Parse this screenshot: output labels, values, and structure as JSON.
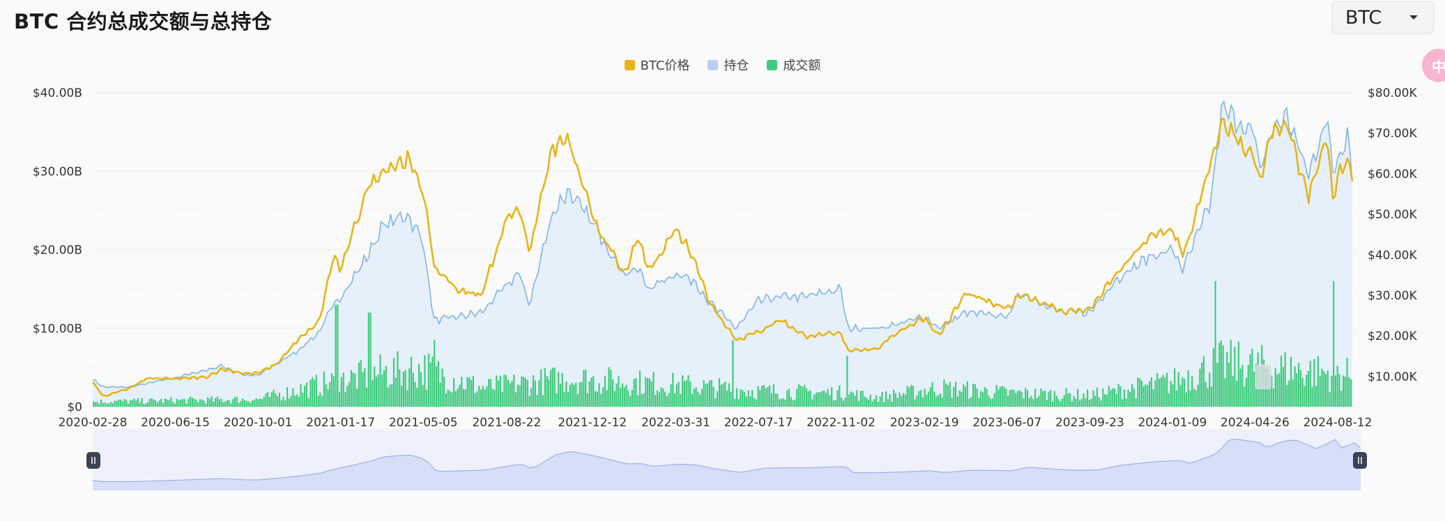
{
  "page": {
    "title": "BTC 合约总成交额与总持仓",
    "selector": {
      "value": "BTC"
    },
    "side_tab_glyph": "中"
  },
  "colors": {
    "price": "#e8b416",
    "open_interest_line": "#7fb4e6",
    "open_interest_fill": "#e6f0fa",
    "volume": "#3ecb7b",
    "grid": "#eeeeee",
    "navigator_fill": "#d7def7",
    "navigator_line": "#9fb1e6",
    "handle": "#3b4256"
  },
  "chart_data": {
    "type": "mixed",
    "legend_position": "top-center",
    "legend": [
      {
        "label": "BTC价格",
        "color": "#e8b416"
      },
      {
        "label": "持仓",
        "color": "#b9d0f0"
      },
      {
        "label": "成交额",
        "color": "#3ecb7b"
      }
    ],
    "x_tick_labels": [
      "2020-02-28",
      "2020-06-15",
      "2020-10-01",
      "2021-01-17",
      "2021-05-05",
      "2021-08-22",
      "2021-12-12",
      "2022-03-31",
      "2022-07-17",
      "2022-11-02",
      "2023-02-19",
      "2023-06-07",
      "2023-09-23",
      "2024-01-09",
      "2024-04-26",
      "2024-08-12"
    ],
    "y_left": {
      "ticks": [
        "$0",
        "$10.00B",
        "$20.00B",
        "$30.00B",
        "$40.00B"
      ],
      "min": 0,
      "max": 40,
      "unit": "B USD"
    },
    "y_right": {
      "ticks": [
        "$10.00K",
        "$20.00K",
        "$30.00K",
        "$40.00K",
        "$50.00K",
        "$60.00K",
        "$70.00K",
        "$80.00K"
      ],
      "min": 2.5,
      "max": 80,
      "unit": "K USD"
    },
    "grid": true,
    "series": [
      {
        "name": "BTC价格",
        "type": "line",
        "axis": "right",
        "points": [
          [
            "2020-02-28",
            8.7
          ],
          [
            "2020-03-13",
            5.0
          ],
          [
            "2020-04-15",
            7.0
          ],
          [
            "2020-05-10",
            9.5
          ],
          [
            "2020-06-15",
            9.4
          ],
          [
            "2020-07-25",
            9.8
          ],
          [
            "2020-08-15",
            11.8
          ],
          [
            "2020-09-15",
            10.7
          ],
          [
            "2020-10-01",
            10.8
          ],
          [
            "2020-10-25",
            13.0
          ],
          [
            "2020-11-20",
            18.5
          ],
          [
            "2020-12-20",
            23.5
          ],
          [
            "2021-01-08",
            40.0
          ],
          [
            "2021-01-17",
            36.0
          ],
          [
            "2021-02-20",
            56.0
          ],
          [
            "2021-03-13",
            61.0
          ],
          [
            "2021-04-14",
            63.5
          ],
          [
            "2021-05-05",
            56.0
          ],
          [
            "2021-05-19",
            37.0
          ],
          [
            "2021-06-22",
            31.0
          ],
          [
            "2021-07-20",
            30.0
          ],
          [
            "2021-08-22",
            49.0
          ],
          [
            "2021-09-07",
            51.5
          ],
          [
            "2021-09-21",
            41.0
          ],
          [
            "2021-10-20",
            66.0
          ],
          [
            "2021-11-10",
            68.5
          ],
          [
            "2021-12-12",
            49.5
          ],
          [
            "2022-01-22",
            35.0
          ],
          [
            "2022-02-10",
            44.0
          ],
          [
            "2022-02-24",
            36.0
          ],
          [
            "2022-03-31",
            46.5
          ],
          [
            "2022-04-25",
            39.0
          ],
          [
            "2022-05-12",
            29.0
          ],
          [
            "2022-06-18",
            19.0
          ],
          [
            "2022-07-17",
            21.0
          ],
          [
            "2022-08-15",
            24.0
          ],
          [
            "2022-09-15",
            20.0
          ],
          [
            "2022-11-02",
            20.5
          ],
          [
            "2022-11-10",
            16.5
          ],
          [
            "2022-12-20",
            16.8
          ],
          [
            "2023-01-15",
            21.0
          ],
          [
            "2023-02-19",
            24.5
          ],
          [
            "2023-03-10",
            20.0
          ],
          [
            "2023-04-14",
            30.5
          ],
          [
            "2023-06-07",
            26.5
          ],
          [
            "2023-06-25",
            30.5
          ],
          [
            "2023-08-18",
            26.0
          ],
          [
            "2023-09-23",
            26.5
          ],
          [
            "2023-10-25",
            34.5
          ],
          [
            "2023-12-08",
            44.0
          ],
          [
            "2024-01-09",
            46.5
          ],
          [
            "2024-01-23",
            39.5
          ],
          [
            "2024-02-28",
            62.0
          ],
          [
            "2024-03-14",
            73.0
          ],
          [
            "2024-04-26",
            63.5
          ],
          [
            "2024-05-01",
            57.0
          ],
          [
            "2024-05-20",
            71.0
          ],
          [
            "2024-06-07",
            71.5
          ],
          [
            "2024-07-05",
            54.0
          ],
          [
            "2024-07-29",
            69.5
          ],
          [
            "2024-08-05",
            53.5
          ],
          [
            "2024-08-12",
            59.0
          ],
          [
            "2024-08-25",
            64.0
          ],
          [
            "2024-08-31",
            58.5
          ]
        ]
      },
      {
        "name": "持仓",
        "type": "area",
        "axis": "left",
        "points": [
          [
            "2020-02-28",
            3.5
          ],
          [
            "2020-03-13",
            2.5
          ],
          [
            "2020-04-15",
            2.5
          ],
          [
            "2020-06-15",
            3.7
          ],
          [
            "2020-08-15",
            5.2
          ],
          [
            "2020-09-15",
            4.0
          ],
          [
            "2020-10-01",
            4.0
          ],
          [
            "2020-11-20",
            7.0
          ],
          [
            "2020-12-20",
            9.5
          ],
          [
            "2021-01-08",
            13.0
          ],
          [
            "2021-01-17",
            14.0
          ],
          [
            "2021-02-20",
            19.0
          ],
          [
            "2021-03-13",
            23.0
          ],
          [
            "2021-04-14",
            24.5
          ],
          [
            "2021-05-05",
            21.0
          ],
          [
            "2021-05-19",
            11.0
          ],
          [
            "2021-06-22",
            11.5
          ],
          [
            "2021-07-20",
            12.0
          ],
          [
            "2021-08-22",
            15.5
          ],
          [
            "2021-09-07",
            17.0
          ],
          [
            "2021-09-21",
            13.0
          ],
          [
            "2021-10-20",
            24.5
          ],
          [
            "2021-11-10",
            27.5
          ],
          [
            "2021-12-12",
            23.5
          ],
          [
            "2022-01-22",
            17.0
          ],
          [
            "2022-02-10",
            17.5
          ],
          [
            "2022-02-24",
            15.0
          ],
          [
            "2022-03-31",
            17.0
          ],
          [
            "2022-04-25",
            16.0
          ],
          [
            "2022-05-12",
            13.5
          ],
          [
            "2022-06-18",
            10.0
          ],
          [
            "2022-07-17",
            13.5
          ],
          [
            "2022-08-15",
            14.0
          ],
          [
            "2022-09-15",
            14.0
          ],
          [
            "2022-11-02",
            15.0
          ],
          [
            "2022-11-10",
            10.0
          ],
          [
            "2022-12-20",
            10.0
          ],
          [
            "2023-01-15",
            10.5
          ],
          [
            "2023-02-19",
            11.5
          ],
          [
            "2023-03-10",
            10.0
          ],
          [
            "2023-04-14",
            12.0
          ],
          [
            "2023-06-07",
            11.5
          ],
          [
            "2023-06-25",
            14.5
          ],
          [
            "2023-08-18",
            12.0
          ],
          [
            "2023-09-23",
            12.0
          ],
          [
            "2023-10-25",
            16.0
          ],
          [
            "2023-12-08",
            19.0
          ],
          [
            "2024-01-09",
            20.0
          ],
          [
            "2024-01-23",
            17.5
          ],
          [
            "2024-02-28",
            26.0
          ],
          [
            "2024-03-14",
            38.0
          ],
          [
            "2024-04-26",
            34.5
          ],
          [
            "2024-05-01",
            30.0
          ],
          [
            "2024-05-20",
            35.5
          ],
          [
            "2024-06-07",
            37.0
          ],
          [
            "2024-07-05",
            29.5
          ],
          [
            "2024-07-29",
            37.0
          ],
          [
            "2024-08-05",
            30.0
          ],
          [
            "2024-08-12",
            31.5
          ],
          [
            "2024-08-25",
            35.0
          ],
          [
            "2024-08-31",
            30.0
          ]
        ]
      },
      {
        "name": "成交额",
        "type": "bar",
        "axis": "left",
        "bar_count": 650,
        "notable_peaks": [
          [
            "2021-01-11",
            13.0
          ],
          [
            "2021-02-23",
            12.0
          ],
          [
            "2021-05-19",
            8.5
          ],
          [
            "2022-06-13",
            8.5
          ],
          [
            "2022-11-09",
            6.5
          ],
          [
            "2024-03-05",
            16.0
          ],
          [
            "2024-08-05",
            16.0
          ]
        ],
        "envelope": [
          [
            "2020-02-28",
            0.8
          ],
          [
            "2020-10-01",
            1.2
          ],
          [
            "2020-12-20",
            3.5
          ],
          [
            "2021-03-13",
            5.5
          ],
          [
            "2021-05-05",
            6.0
          ],
          [
            "2021-07-20",
            3.0
          ],
          [
            "2021-11-10",
            4.5
          ],
          [
            "2022-03-31",
            3.5
          ],
          [
            "2022-07-17",
            2.5
          ],
          [
            "2022-11-02",
            2.2
          ],
          [
            "2022-12-20",
            1.5
          ],
          [
            "2023-03-10",
            3.0
          ],
          [
            "2023-06-07",
            2.2
          ],
          [
            "2023-09-23",
            1.8
          ],
          [
            "2024-01-09",
            4.0
          ],
          [
            "2024-03-14",
            7.0
          ],
          [
            "2024-08-31",
            5.0
          ]
        ]
      }
    ]
  }
}
